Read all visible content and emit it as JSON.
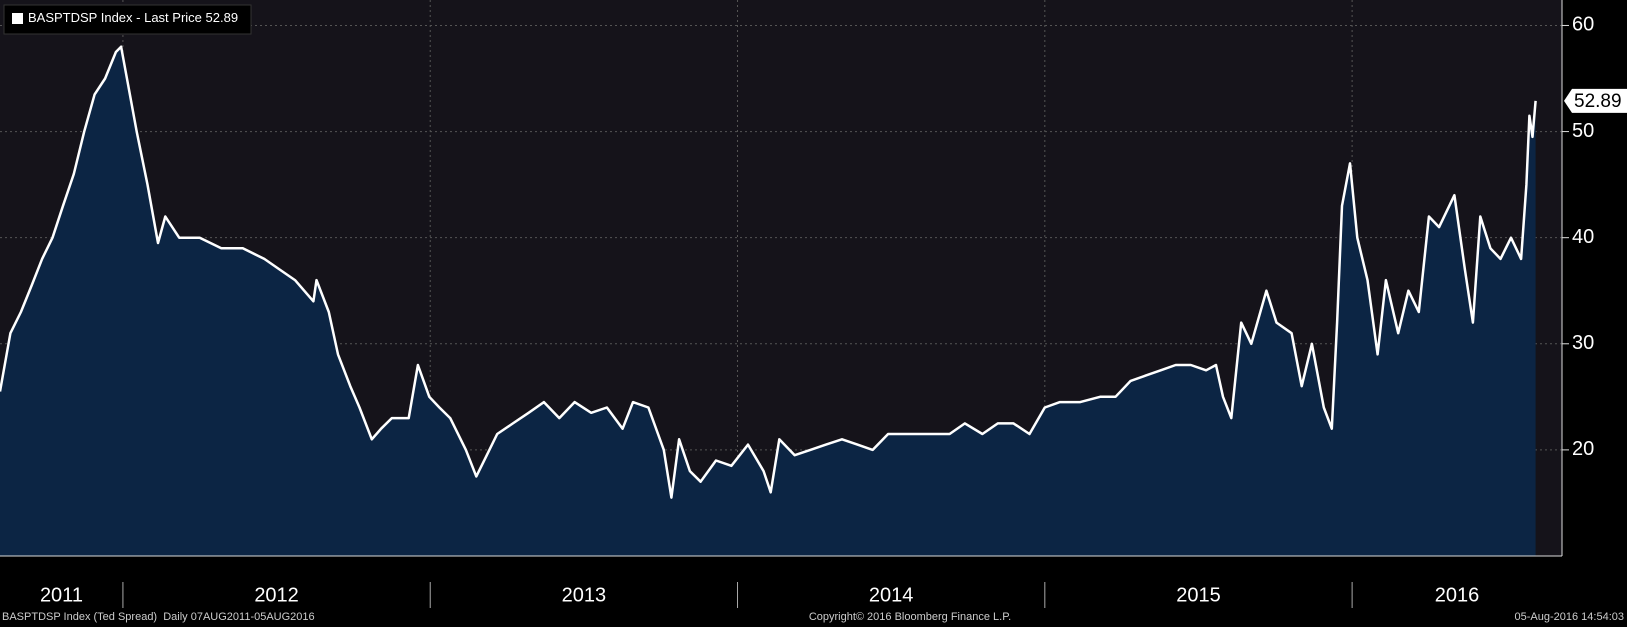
{
  "chart_data": {
    "type": "area-line",
    "series": [
      {
        "name": "BASPTDSP Index - Last Price",
        "color": "#ffffff",
        "x": [
          2011.6,
          2011.634,
          2011.668,
          2011.703,
          2011.737,
          2011.771,
          2011.805,
          2011.84,
          2011.874,
          2011.908,
          2011.942,
          2011.977,
          2011.994,
          2012.045,
          2012.08,
          2012.114,
          2012.138,
          2012.183,
          2012.25,
          2012.32,
          2012.39,
          2012.46,
          2012.51,
          2012.56,
          2012.62,
          2012.63,
          2012.67,
          2012.7,
          2012.74,
          2012.77,
          2012.81,
          2012.84,
          2012.875,
          2012.93,
          2012.96,
          2012.997,
          2013.03,
          2013.065,
          2013.116,
          2013.15,
          2013.184,
          2013.218,
          2013.269,
          2013.32,
          2013.37,
          2013.42,
          2013.47,
          2013.524,
          2013.575,
          2013.626,
          2013.66,
          2013.71,
          2013.76,
          2013.785,
          2013.81,
          2013.845,
          2013.88,
          2013.93,
          2013.98,
          2014.034,
          2014.085,
          2014.108,
          2014.136,
          2014.186,
          2014.237,
          2014.288,
          2014.34,
          2014.39,
          2014.44,
          2014.49,
          2014.54,
          2014.59,
          2014.64,
          2014.69,
          2014.74,
          2014.797,
          2014.847,
          2014.898,
          2014.95,
          2015.0,
          2015.049,
          2015.115,
          2015.18,
          2015.23,
          2015.279,
          2015.328,
          2015.377,
          2015.426,
          2015.475,
          2015.525,
          2015.557,
          2015.58,
          2015.607,
          2015.639,
          2015.672,
          2015.721,
          2015.754,
          2015.803,
          2015.836,
          2015.869,
          2015.908,
          2015.934,
          2015.951,
          2015.967,
          2015.993,
          2016.017,
          2016.05,
          2016.083,
          2016.11,
          2016.15,
          2016.183,
          2016.217,
          2016.25,
          2016.283,
          2016.333,
          2016.367,
          2016.393,
          2016.417,
          2016.45,
          2016.483,
          2016.517,
          2016.55,
          2016.567,
          2016.577,
          2016.587,
          2016.597
        ],
        "values": [
          25.5,
          31,
          33,
          35.5,
          38,
          40,
          43,
          46,
          50,
          53.5,
          55,
          57.5,
          58,
          50,
          45,
          39.5,
          42,
          40,
          40,
          39,
          39,
          38,
          37,
          36,
          34,
          36,
          33,
          29,
          26,
          24,
          21,
          22,
          23,
          23,
          28,
          25,
          24,
          23,
          20,
          17.5,
          19.5,
          21.5,
          22.5,
          23.5,
          24.5,
          23,
          24.5,
          23.5,
          24,
          22,
          24.5,
          24,
          20,
          15.5,
          21,
          18,
          17,
          19,
          18.5,
          20.5,
          18,
          16,
          21,
          19.5,
          20,
          20.5,
          21,
          20.5,
          20,
          21.5,
          21.5,
          21.5,
          21.5,
          21.5,
          22.5,
          21.5,
          22.5,
          22.5,
          21.5,
          24,
          24.5,
          24.5,
          25,
          25,
          26.5,
          27,
          27.5,
          28,
          28,
          27.5,
          28,
          25,
          23,
          32,
          30,
          35,
          32,
          31,
          26,
          30,
          24,
          22,
          32,
          43,
          47,
          40,
          36,
          29,
          36,
          31,
          35,
          33,
          42,
          41,
          44,
          37,
          32,
          42,
          39,
          38,
          40,
          38,
          45,
          51.5,
          49.5,
          52.89
        ]
      }
    ],
    "xlim": [
      2011.6,
      2016.683
    ],
    "xticks": [
      2012,
      2013,
      2014,
      2015,
      2016
    ],
    "year_labels": [
      "2011",
      "2012",
      "2013",
      "2014",
      "2015",
      "2016"
    ],
    "ylim": [
      10,
      62.4
    ],
    "yticks": [
      20,
      30,
      40,
      50,
      60
    ],
    "grid": true,
    "fill_color": "#0c2544",
    "footer_left": "BASPTDSP Index (Ted Spread)  Daily 07AUG2011-05AUG2016",
    "footer_center": "Copyright© 2016 Bloomberg Finance L.P.",
    "footer_right": "05-Aug-2016 14:54:03"
  }
}
